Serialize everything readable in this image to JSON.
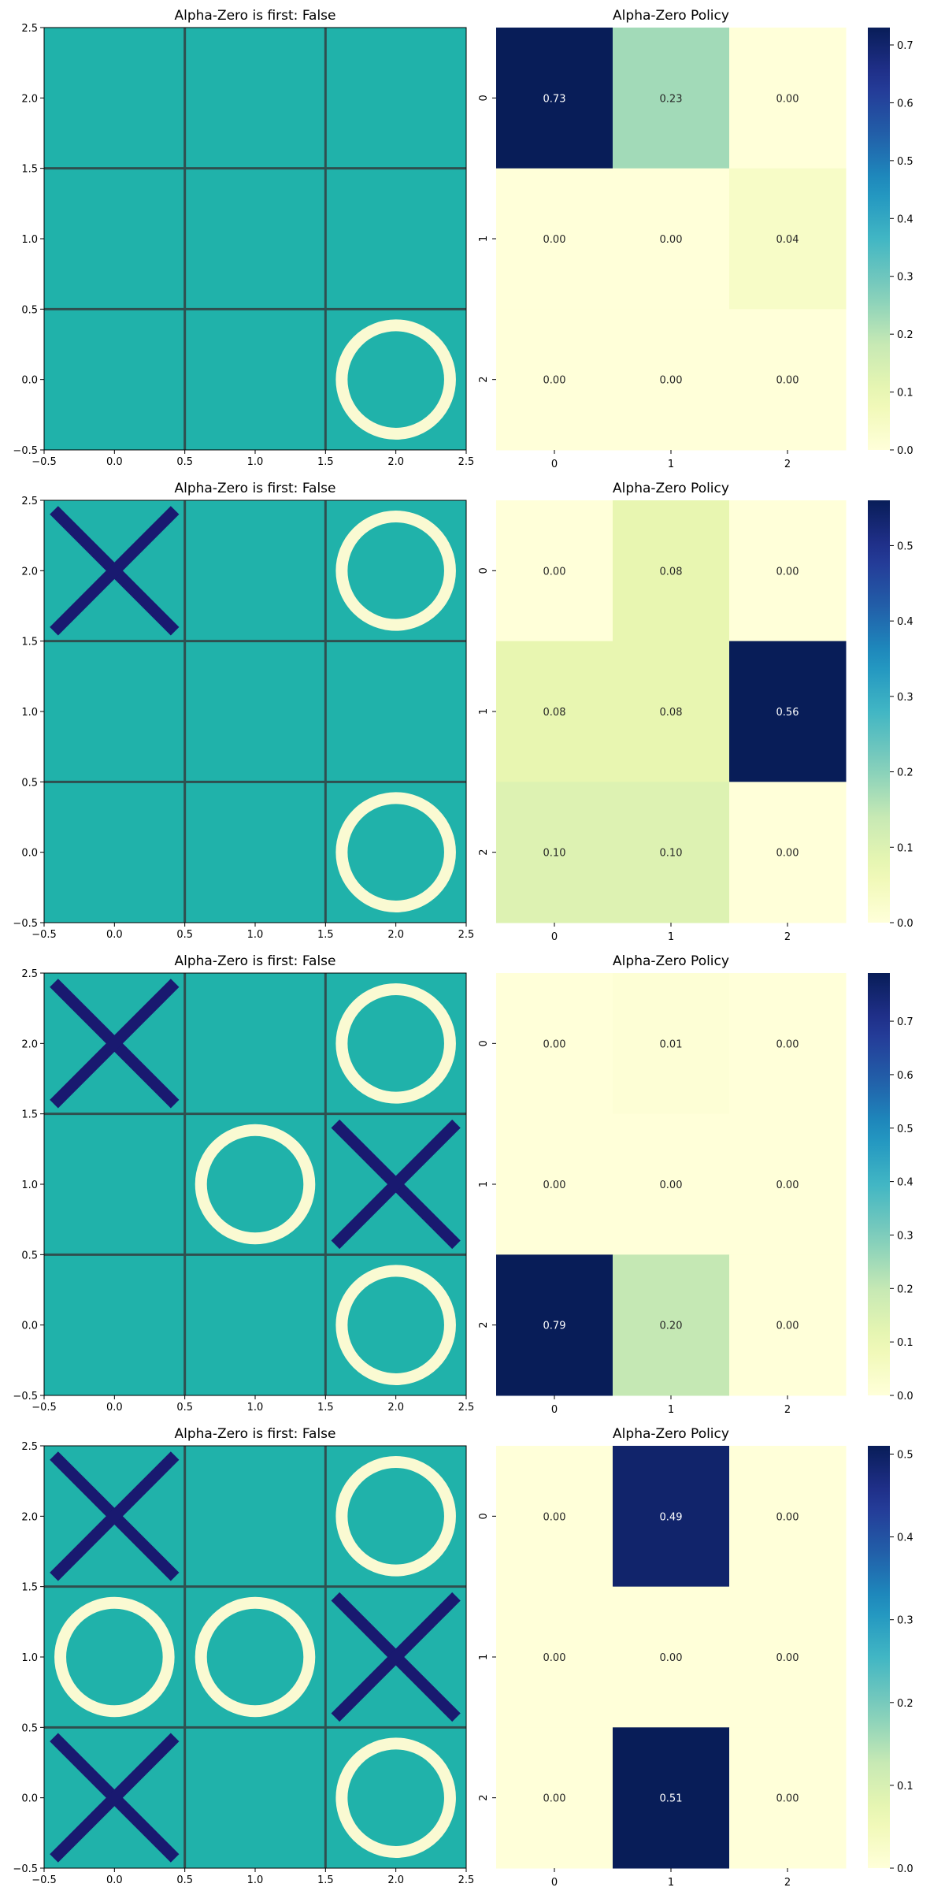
{
  "chart_data": [
    {
      "type": "board",
      "title": "Alpha-Zero is first: False",
      "xlim": [
        -0.5,
        2.5
      ],
      "ylim": [
        -0.5,
        2.5
      ],
      "xticks": [
        "−0.5",
        "0.0",
        "0.5",
        "1.0",
        "1.5",
        "2.0",
        "2.5"
      ],
      "yticks": [
        "−0.5",
        "0.0",
        "0.5",
        "1.0",
        "1.5",
        "2.0",
        "2.5"
      ],
      "pieces": [
        {
          "mark": "O",
          "x": 2,
          "y": 0
        }
      ]
    },
    {
      "type": "heatmap",
      "title": "Alpha-Zero Policy",
      "rows": [
        "0",
        "1",
        "2"
      ],
      "cols": [
        "0",
        "1",
        "2"
      ],
      "values": [
        [
          0.73,
          0.23,
          0.0
        ],
        [
          0.0,
          0.0,
          0.04
        ],
        [
          0.0,
          0.0,
          0.0
        ]
      ],
      "value_labels": [
        [
          "0.73",
          "0.23",
          "0.00"
        ],
        [
          "0.00",
          "0.00",
          "0.04"
        ],
        [
          "0.00",
          "0.00",
          "0.00"
        ]
      ],
      "colorbar": {
        "min": 0,
        "max": 0.73,
        "ticks": [
          "0.0",
          "0.1",
          "0.2",
          "0.3",
          "0.4",
          "0.5",
          "0.6",
          "0.7"
        ]
      },
      "colormap": "YlGnBu"
    },
    {
      "type": "board",
      "title": "Alpha-Zero is first: False",
      "xlim": [
        -0.5,
        2.5
      ],
      "ylim": [
        -0.5,
        2.5
      ],
      "xticks": [
        "−0.5",
        "0.0",
        "0.5",
        "1.0",
        "1.5",
        "2.0",
        "2.5"
      ],
      "yticks": [
        "−0.5",
        "0.0",
        "0.5",
        "1.0",
        "1.5",
        "2.0",
        "2.5"
      ],
      "pieces": [
        {
          "mark": "X",
          "x": 0,
          "y": 2
        },
        {
          "mark": "O",
          "x": 2,
          "y": 2
        },
        {
          "mark": "O",
          "x": 2,
          "y": 0
        }
      ]
    },
    {
      "type": "heatmap",
      "title": "Alpha-Zero Policy",
      "rows": [
        "0",
        "1",
        "2"
      ],
      "cols": [
        "0",
        "1",
        "2"
      ],
      "values": [
        [
          0.0,
          0.08,
          0.0
        ],
        [
          0.08,
          0.08,
          0.56
        ],
        [
          0.1,
          0.1,
          0.0
        ]
      ],
      "value_labels": [
        [
          "0.00",
          "0.08",
          "0.00"
        ],
        [
          "0.08",
          "0.08",
          "0.56"
        ],
        [
          "0.10",
          "0.10",
          "0.00"
        ]
      ],
      "colorbar": {
        "min": 0,
        "max": 0.56,
        "ticks": [
          "0.0",
          "0.1",
          "0.2",
          "0.3",
          "0.4",
          "0.5"
        ]
      },
      "colormap": "YlGnBu"
    },
    {
      "type": "board",
      "title": "Alpha-Zero is first: False",
      "xlim": [
        -0.5,
        2.5
      ],
      "ylim": [
        -0.5,
        2.5
      ],
      "xticks": [
        "−0.5",
        "0.0",
        "0.5",
        "1.0",
        "1.5",
        "2.0",
        "2.5"
      ],
      "yticks": [
        "−0.5",
        "0.0",
        "0.5",
        "1.0",
        "1.5",
        "2.0",
        "2.5"
      ],
      "pieces": [
        {
          "mark": "X",
          "x": 0,
          "y": 2
        },
        {
          "mark": "O",
          "x": 2,
          "y": 2
        },
        {
          "mark": "O",
          "x": 1,
          "y": 1
        },
        {
          "mark": "X",
          "x": 2,
          "y": 1
        },
        {
          "mark": "O",
          "x": 2,
          "y": 0
        }
      ]
    },
    {
      "type": "heatmap",
      "title": "Alpha-Zero Policy",
      "rows": [
        "0",
        "1",
        "2"
      ],
      "cols": [
        "0",
        "1",
        "2"
      ],
      "values": [
        [
          0.0,
          0.01,
          0.0
        ],
        [
          0.0,
          0.0,
          0.0
        ],
        [
          0.79,
          0.2,
          0.0
        ]
      ],
      "value_labels": [
        [
          "0.00",
          "0.01",
          "0.00"
        ],
        [
          "0.00",
          "0.00",
          "0.00"
        ],
        [
          "0.79",
          "0.20",
          "0.00"
        ]
      ],
      "colorbar": {
        "min": 0,
        "max": 0.79,
        "ticks": [
          "0.0",
          "0.1",
          "0.2",
          "0.3",
          "0.4",
          "0.5",
          "0.6",
          "0.7"
        ]
      },
      "colormap": "YlGnBu"
    },
    {
      "type": "board",
      "title": "Alpha-Zero is first: False",
      "xlim": [
        -0.5,
        2.5
      ],
      "ylim": [
        -0.5,
        2.5
      ],
      "xticks": [
        "−0.5",
        "0.0",
        "0.5",
        "1.0",
        "1.5",
        "2.0",
        "2.5"
      ],
      "yticks": [
        "−0.5",
        "0.0",
        "0.5",
        "1.0",
        "1.5",
        "2.0",
        "2.5"
      ],
      "pieces": [
        {
          "mark": "X",
          "x": 0,
          "y": 2
        },
        {
          "mark": "O",
          "x": 2,
          "y": 2
        },
        {
          "mark": "O",
          "x": 0,
          "y": 1
        },
        {
          "mark": "O",
          "x": 1,
          "y": 1
        },
        {
          "mark": "X",
          "x": 2,
          "y": 1
        },
        {
          "mark": "X",
          "x": 0,
          "y": 0
        },
        {
          "mark": "O",
          "x": 2,
          "y": 0
        }
      ]
    },
    {
      "type": "heatmap",
      "title": "Alpha-Zero Policy",
      "rows": [
        "0",
        "1",
        "2"
      ],
      "cols": [
        "0",
        "1",
        "2"
      ],
      "values": [
        [
          0.0,
          0.49,
          0.0
        ],
        [
          0.0,
          0.0,
          0.0
        ],
        [
          0.0,
          0.51,
          0.0
        ]
      ],
      "value_labels": [
        [
          "0.00",
          "0.49",
          "0.00"
        ],
        [
          "0.00",
          "0.00",
          "0.00"
        ],
        [
          "0.00",
          "0.51",
          "0.00"
        ]
      ],
      "colorbar": {
        "min": 0,
        "max": 0.51,
        "ticks": [
          "0.0",
          "0.1",
          "0.2",
          "0.3",
          "0.4",
          "0.5"
        ]
      },
      "colormap": "YlGnBu"
    }
  ],
  "colors": {
    "board_bg": "#20b2aa",
    "grid_line": "#2f4f4f",
    "x_mark": "#191970",
    "o_mark": "#fafad2",
    "axis": "#000000",
    "text_dark": "#262626",
    "text_light": "#ffffff"
  }
}
